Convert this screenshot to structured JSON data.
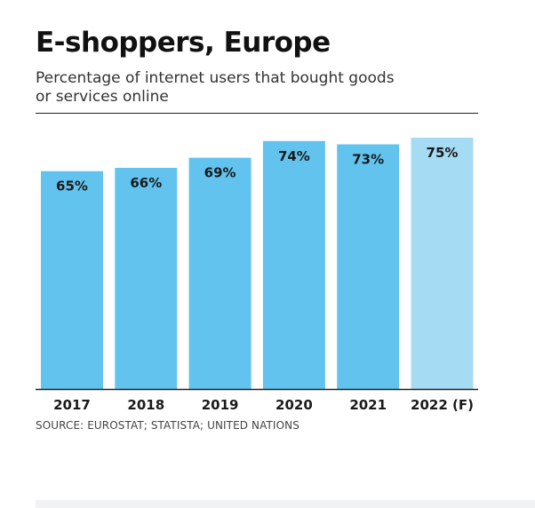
{
  "title": "E-shoppers, Europe",
  "subtitle": "Percentage of internet users that bought goods or services online",
  "source": "SOURCE: EUROSTAT; STATISTA; UNITED NATIONS",
  "colors": {
    "bar": "#62c4ee",
    "bar_forecast": "#a6dbf4",
    "label": "#1a1a1a",
    "axis": "#222222"
  },
  "chart_data": {
    "type": "bar",
    "categories": [
      "2017",
      "2018",
      "2019",
      "2020",
      "2021",
      "2022 (F)"
    ],
    "values": [
      65,
      66,
      69,
      74,
      73,
      75
    ],
    "value_labels": [
      "65%",
      "66%",
      "69%",
      "74%",
      "73%",
      "75%"
    ],
    "forecast": [
      false,
      false,
      false,
      false,
      false,
      true
    ],
    "unit": "%",
    "ylim": [
      0,
      75
    ],
    "grid": false,
    "legend": "none"
  }
}
